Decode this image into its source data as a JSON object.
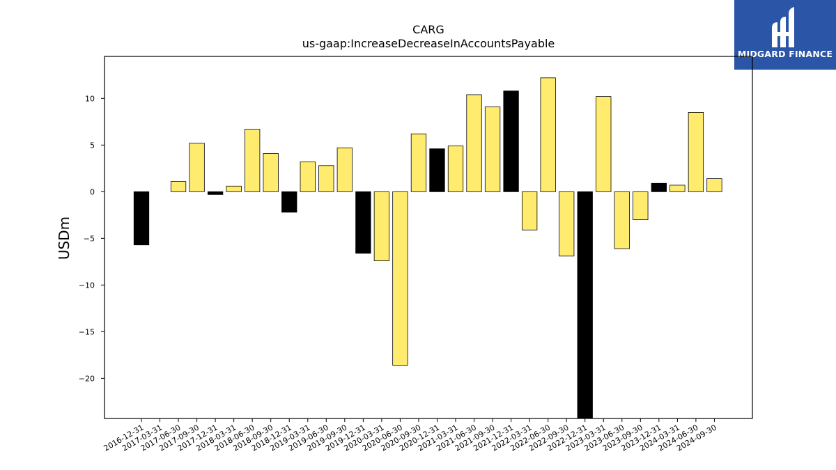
{
  "logo": {
    "text": "MIDGARD FINANCE"
  },
  "chart_data": {
    "type": "bar",
    "title": "CARG",
    "subtitle": "us-gaap:IncreaseDecreaseInAccountsPayable",
    "xlabel": "",
    "ylabel": "USDm",
    "ylim": [
      -24.3,
      14.5
    ],
    "yticks": [
      10,
      5,
      0,
      -5,
      -10,
      -15,
      -20
    ],
    "ytick_labels": [
      "10",
      "5",
      "0",
      "−5",
      "−10",
      "−15",
      "−20"
    ],
    "colors": {
      "quarter": "#ffeb6e",
      "annual": "#000000",
      "edge": "#000000"
    },
    "categories": [
      "2016-12-31",
      "2017-03-31",
      "2017-06-30",
      "2017-09-30",
      "2017-12-31",
      "2018-03-31",
      "2018-06-30",
      "2018-09-30",
      "2018-12-31",
      "2019-03-31",
      "2019-06-30",
      "2019-09-30",
      "2019-12-31",
      "2020-03-31",
      "2020-06-30",
      "2020-09-30",
      "2020-12-31",
      "2021-03-31",
      "2021-06-30",
      "2021-09-30",
      "2021-12-31",
      "2022-03-31",
      "2022-06-30",
      "2022-09-30",
      "2022-12-31",
      "2023-03-31",
      "2023-06-30",
      "2023-09-30",
      "2023-12-31",
      "2024-03-31",
      "2024-06-30",
      "2024-09-30"
    ],
    "values": [
      -5.7,
      0.0,
      1.1,
      5.2,
      -0.3,
      0.6,
      6.7,
      4.1,
      -2.2,
      3.2,
      2.8,
      4.7,
      -6.6,
      -7.4,
      -18.6,
      6.2,
      4.6,
      4.9,
      10.4,
      9.1,
      10.8,
      -4.1,
      12.2,
      -6.9,
      -24.3,
      10.2,
      -6.1,
      -3.0,
      0.9,
      0.7,
      8.5,
      1.4
    ],
    "annual": [
      true,
      false,
      false,
      false,
      true,
      false,
      false,
      false,
      true,
      false,
      false,
      false,
      true,
      false,
      false,
      false,
      true,
      false,
      false,
      false,
      true,
      false,
      false,
      false,
      true,
      false,
      false,
      false,
      true,
      false,
      false,
      false
    ]
  }
}
